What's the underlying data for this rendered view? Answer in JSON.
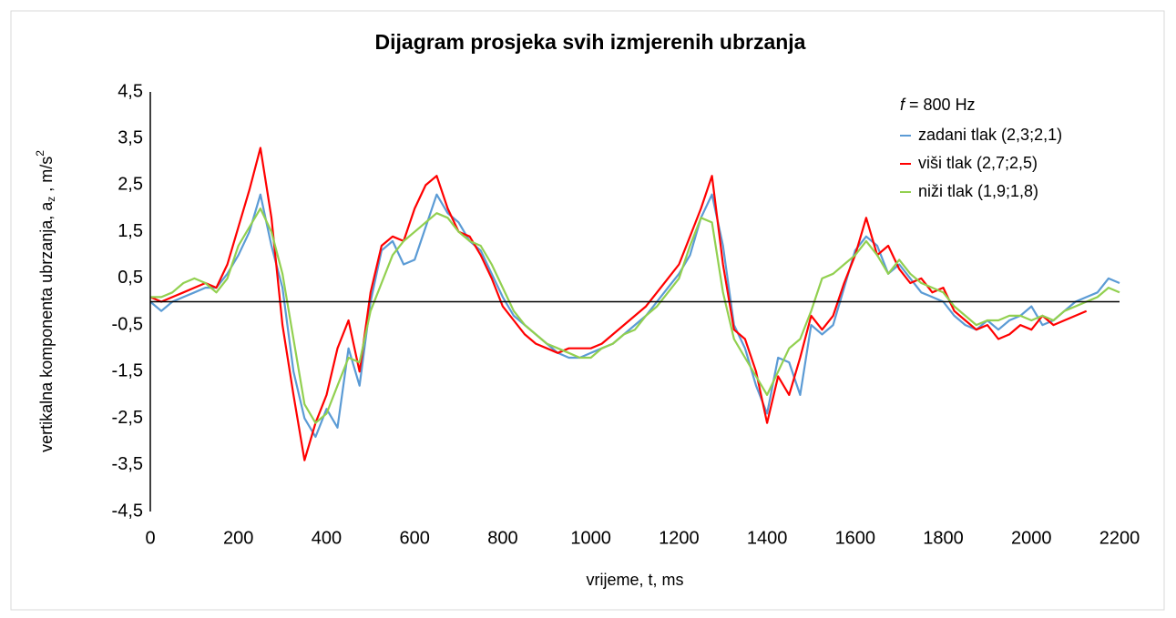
{
  "chart_data": {
    "type": "line",
    "title": "Dijagram prosjeka svih izmjerenih ubrzanja",
    "xlabel": "vrijeme,  t, ms",
    "ylabel_parts": [
      "vertikalna komponenta ubrzanja,  a",
      "z",
      " , m/s",
      "2"
    ],
    "annotation": {
      "italic": "f",
      "text": " = 800 Hz"
    },
    "xlim": [
      0,
      2200
    ],
    "xticks": [
      0,
      200,
      400,
      600,
      800,
      1000,
      1200,
      1400,
      1600,
      1800,
      2000,
      2200
    ],
    "ylim": [
      -4.5,
      4.5
    ],
    "yticks": [
      {
        "value": 4.5,
        "label": "4,5"
      },
      {
        "value": 3.5,
        "label": "3,5"
      },
      {
        "value": 2.5,
        "label": "2,5"
      },
      {
        "value": 1.5,
        "label": "1,5"
      },
      {
        "value": 0.5,
        "label": "0,5"
      },
      {
        "value": -0.5,
        "label": "-0,5"
      },
      {
        "value": -1.5,
        "label": "-1,5"
      },
      {
        "value": -2.5,
        "label": "-2,5"
      },
      {
        "value": -3.5,
        "label": "-3,5"
      },
      {
        "value": -4.5,
        "label": "-4,5"
      }
    ],
    "grid": false,
    "legend": "top-right",
    "x": [
      0,
      25,
      50,
      75,
      100,
      125,
      150,
      175,
      200,
      225,
      250,
      275,
      300,
      325,
      350,
      375,
      400,
      425,
      450,
      475,
      500,
      525,
      550,
      575,
      600,
      625,
      650,
      675,
      700,
      725,
      750,
      775,
      800,
      825,
      850,
      875,
      900,
      925,
      950,
      975,
      1000,
      1025,
      1050,
      1075,
      1100,
      1125,
      1150,
      1175,
      1200,
      1225,
      1250,
      1275,
      1300,
      1325,
      1350,
      1375,
      1400,
      1425,
      1450,
      1475,
      1500,
      1525,
      1550,
      1575,
      1600,
      1625,
      1650,
      1675,
      1700,
      1725,
      1750,
      1775,
      1800,
      1825,
      1850,
      1875,
      1900,
      1925,
      1950,
      1975,
      2000,
      2025,
      2050,
      2075,
      2100,
      2125,
      2150,
      2175,
      2200
    ],
    "series": [
      {
        "name": "zadani tlak (2,3;2,1)",
        "color": "#5b9bd5",
        "values": [
          0,
          -0.2,
          0,
          0.1,
          0.2,
          0.3,
          0.3,
          0.6,
          1.0,
          1.5,
          2.3,
          1.2,
          0.3,
          -1.5,
          -2.5,
          -2.9,
          -2.3,
          -2.7,
          -1.0,
          -1.8,
          0,
          1.1,
          1.3,
          0.8,
          0.9,
          1.6,
          2.3,
          1.9,
          1.7,
          1.3,
          1.1,
          0.6,
          0.1,
          -0.3,
          -0.5,
          -0.7,
          -0.9,
          -1.1,
          -1.2,
          -1.2,
          -1.1,
          -1.0,
          -0.9,
          -0.7,
          -0.5,
          -0.3,
          0,
          0.3,
          0.6,
          1.0,
          1.8,
          2.3,
          1.2,
          -0.5,
          -1.0,
          -1.8,
          -2.4,
          -1.2,
          -1.3,
          -2.0,
          -0.5,
          -0.7,
          -0.5,
          0.3,
          1.1,
          1.4,
          1.2,
          0.6,
          0.8,
          0.5,
          0.2,
          0.1,
          0,
          -0.3,
          -0.5,
          -0.6,
          -0.4,
          -0.6,
          -0.4,
          -0.3,
          -0.1,
          -0.5,
          -0.4,
          -0.2,
          0,
          0.1,
          0.2,
          0.5,
          0.4
        ]
      },
      {
        "name": "viši tlak (2,7;2,5)",
        "color": "#ff0000",
        "values": [
          0.1,
          0,
          0.1,
          0.2,
          0.3,
          0.4,
          0.3,
          0.8,
          1.6,
          2.4,
          3.3,
          1.8,
          -0.5,
          -2.0,
          -3.4,
          -2.6,
          -2.0,
          -1.0,
          -0.4,
          -1.5,
          0.2,
          1.2,
          1.4,
          1.3,
          2.0,
          2.5,
          2.7,
          2.0,
          1.5,
          1.4,
          1.0,
          0.5,
          -0.1,
          -0.4,
          -0.7,
          -0.9,
          -1.0,
          -1.1,
          -1.0,
          -1.0,
          -1.0,
          -0.9,
          -0.7,
          -0.5,
          -0.3,
          -0.1,
          0.2,
          0.5,
          0.8,
          1.4,
          2.0,
          2.7,
          0.8,
          -0.6,
          -0.8,
          -1.5,
          -2.6,
          -1.6,
          -2.0,
          -1.2,
          -0.3,
          -0.6,
          -0.3,
          0.4,
          1.0,
          1.8,
          1.0,
          1.2,
          0.7,
          0.4,
          0.5,
          0.2,
          0.3,
          -0.2,
          -0.4,
          -0.6,
          -0.5,
          -0.8,
          -0.7,
          -0.5,
          -0.6,
          -0.3,
          -0.5,
          -0.4,
          -0.3,
          -0.2,
          null,
          null,
          null
        ]
      },
      {
        "name": "niži tlak (1,9;1,8)",
        "color": "#92d050",
        "values": [
          0.1,
          0.1,
          0.2,
          0.4,
          0.5,
          0.4,
          0.2,
          0.5,
          1.2,
          1.6,
          2.0,
          1.5,
          0.6,
          -0.8,
          -2.2,
          -2.6,
          -2.4,
          -1.8,
          -1.2,
          -1.3,
          -0.2,
          0.4,
          1.0,
          1.3,
          1.5,
          1.7,
          1.9,
          1.8,
          1.5,
          1.3,
          1.2,
          0.8,
          0.3,
          -0.2,
          -0.5,
          -0.7,
          -0.9,
          -1.0,
          -1.1,
          -1.2,
          -1.2,
          -1.0,
          -0.9,
          -0.7,
          -0.6,
          -0.3,
          -0.1,
          0.2,
          0.5,
          1.2,
          1.8,
          1.7,
          0.2,
          -0.8,
          -1.2,
          -1.6,
          -2.0,
          -1.5,
          -1.0,
          -0.8,
          -0.2,
          0.5,
          0.6,
          0.8,
          1.0,
          1.3,
          1.0,
          0.6,
          0.9,
          0.6,
          0.4,
          0.3,
          0.2,
          -0.1,
          -0.3,
          -0.5,
          -0.4,
          -0.4,
          -0.3,
          -0.3,
          -0.4,
          -0.3,
          -0.4,
          -0.2,
          -0.1,
          0,
          0.1,
          0.3,
          0.2
        ]
      }
    ]
  }
}
